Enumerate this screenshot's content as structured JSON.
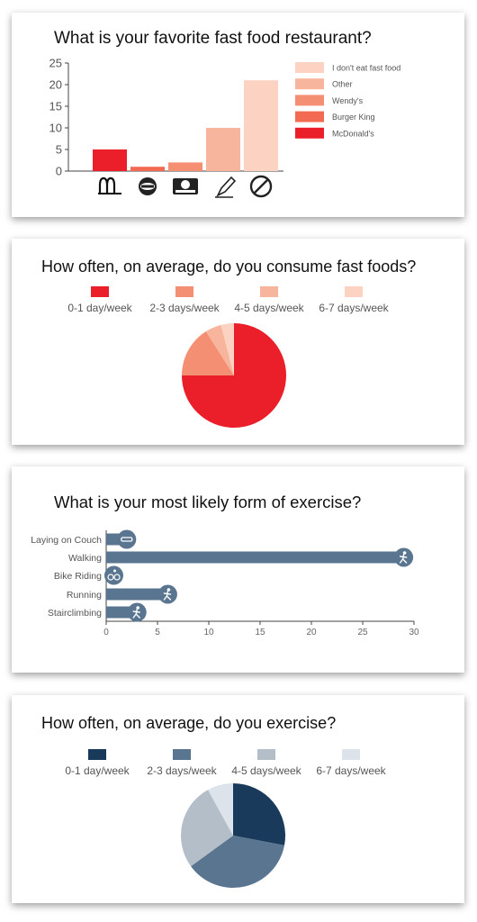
{
  "chart_data": [
    {
      "type": "bar",
      "title": "What is your favorite fast food restaurant?",
      "categories": [
        "McDonald's",
        "Burger King",
        "Wendy's",
        "Other",
        "I don't eat fast food"
      ],
      "values": [
        5,
        1,
        2,
        10,
        21
      ],
      "colors": [
        "#ea1f2a",
        "#f26a52",
        "#f48f74",
        "#f8b59e",
        "#fcd2c3"
      ],
      "category_icons": [
        "mcdonalds-logo",
        "burger-king-logo",
        "wendys-logo",
        "pencil-icon",
        "no-symbol-icon"
      ],
      "ylim": [
        0,
        25
      ],
      "yticks": [
        0,
        5,
        10,
        15,
        20,
        25
      ],
      "legend": [
        "I don't eat fast food",
        "Other",
        "Wendy's",
        "Burger King",
        "McDonald's"
      ],
      "legend_colors": [
        "#fcd2c3",
        "#f8b59e",
        "#f48f74",
        "#f26a52",
        "#ea1f2a"
      ],
      "legend_position": "right",
      "grid": false
    },
    {
      "type": "pie",
      "title": "How often, on average, do you consume fast foods?",
      "categories": [
        "0-1 day/week",
        "2-3 days/week",
        "4-5 days/week",
        "6-7 days/week"
      ],
      "values": [
        75,
        16,
        5,
        4
      ],
      "colors": [
        "#ea1f2a",
        "#f48f74",
        "#f8b59e",
        "#fcd2c3"
      ],
      "legend_position": "top"
    },
    {
      "type": "bar",
      "orientation": "horizontal",
      "title": "What is your most likely form of exercise?",
      "categories": [
        "Laying on Couch",
        "Walking",
        "Bike Riding",
        "Running",
        "Stairclimbing"
      ],
      "values": [
        2,
        29,
        0.5,
        6,
        3
      ],
      "category_icons": [
        "couch-icon",
        "walking-icon",
        "bike-icon",
        "running-icon",
        "stairs-icon"
      ],
      "color": "#5a7590",
      "xlim": [
        0,
        30
      ],
      "xticks": [
        0,
        5,
        10,
        15,
        20,
        25,
        30
      ],
      "grid": false
    },
    {
      "type": "pie",
      "title": "How often, on average, do you exercise?",
      "categories": [
        "0-1 day/week",
        "2-3 days/week",
        "4-5 days/week",
        "6-7 days/week"
      ],
      "values": [
        28,
        37,
        27,
        8
      ],
      "colors": [
        "#1a3a5b",
        "#5a7590",
        "#b4bec9",
        "#dde3ea"
      ],
      "legend_position": "top"
    }
  ]
}
